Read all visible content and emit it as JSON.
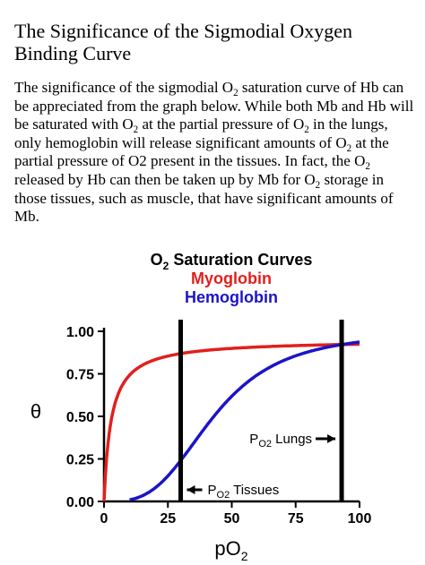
{
  "slide": {
    "title": "The Significance of the Sigmodial Oxygen Binding Curve",
    "body": {
      "s1": "The significance of the sigmodial O",
      "s1_sub": "2",
      "s2": " saturation curve of Hb can be appreciated from the graph below. While both Mb and Hb will be saturated with O",
      "s2_sub": "2",
      "s3": " at the partial pressure of  O",
      "s3_sub": "2",
      "s4": " in the lungs, only hemoglobin will release significant amounts of O",
      "s4_sub": "2",
      "s5": " at  the partial pressure of O2 present in the tissues. In fact, the O",
      "s5_sub": "2",
      "s6": " released by Hb can then be taken up by Mb for O",
      "s6_sub": "2",
      "s7": " storage in  those tissues, such as muscle, that have significant amounts of Mb."
    }
  },
  "chart_data": {
    "type": "line",
    "title": "Saturation Curves",
    "title_prefix": "O",
    "title_prefix_sub": "2",
    "xlabel": "pO",
    "xlabel_sub": "2",
    "ylabel": "θ",
    "xlim": [
      0,
      100
    ],
    "ylim": [
      0,
      1.0
    ],
    "x_ticks": [
      "0",
      "25",
      "50",
      "75",
      "100"
    ],
    "y_ticks": [
      "0.00",
      "0.25",
      "0.50",
      "0.75",
      "1.00"
    ],
    "x_tick_values": [
      0,
      25,
      50,
      75,
      100
    ],
    "y_tick_values": [
      0,
      0.25,
      0.5,
      0.75,
      1.0
    ],
    "grid": false,
    "legend": "top-center",
    "series": [
      {
        "name": "Myoglobin",
        "color": "#e0201e",
        "kind": "hyperbolic",
        "p50": 2.8,
        "x_end": 100
      },
      {
        "name": "Hemoglobin",
        "color": "#1c14c8",
        "kind": "sigmoidal",
        "p50": 43,
        "n": 3.2,
        "x_start": 10,
        "x_end": 100
      }
    ],
    "markers": [
      {
        "name": "Tissues",
        "label_prefix": "P",
        "label_sub": "O2",
        "label": " Tissues",
        "x": 30,
        "arrow": "left"
      },
      {
        "name": "Lungs",
        "label_prefix": "P",
        "label_sub": "O2",
        "label": " Lungs",
        "x": 93,
        "arrow": "right"
      }
    ]
  }
}
